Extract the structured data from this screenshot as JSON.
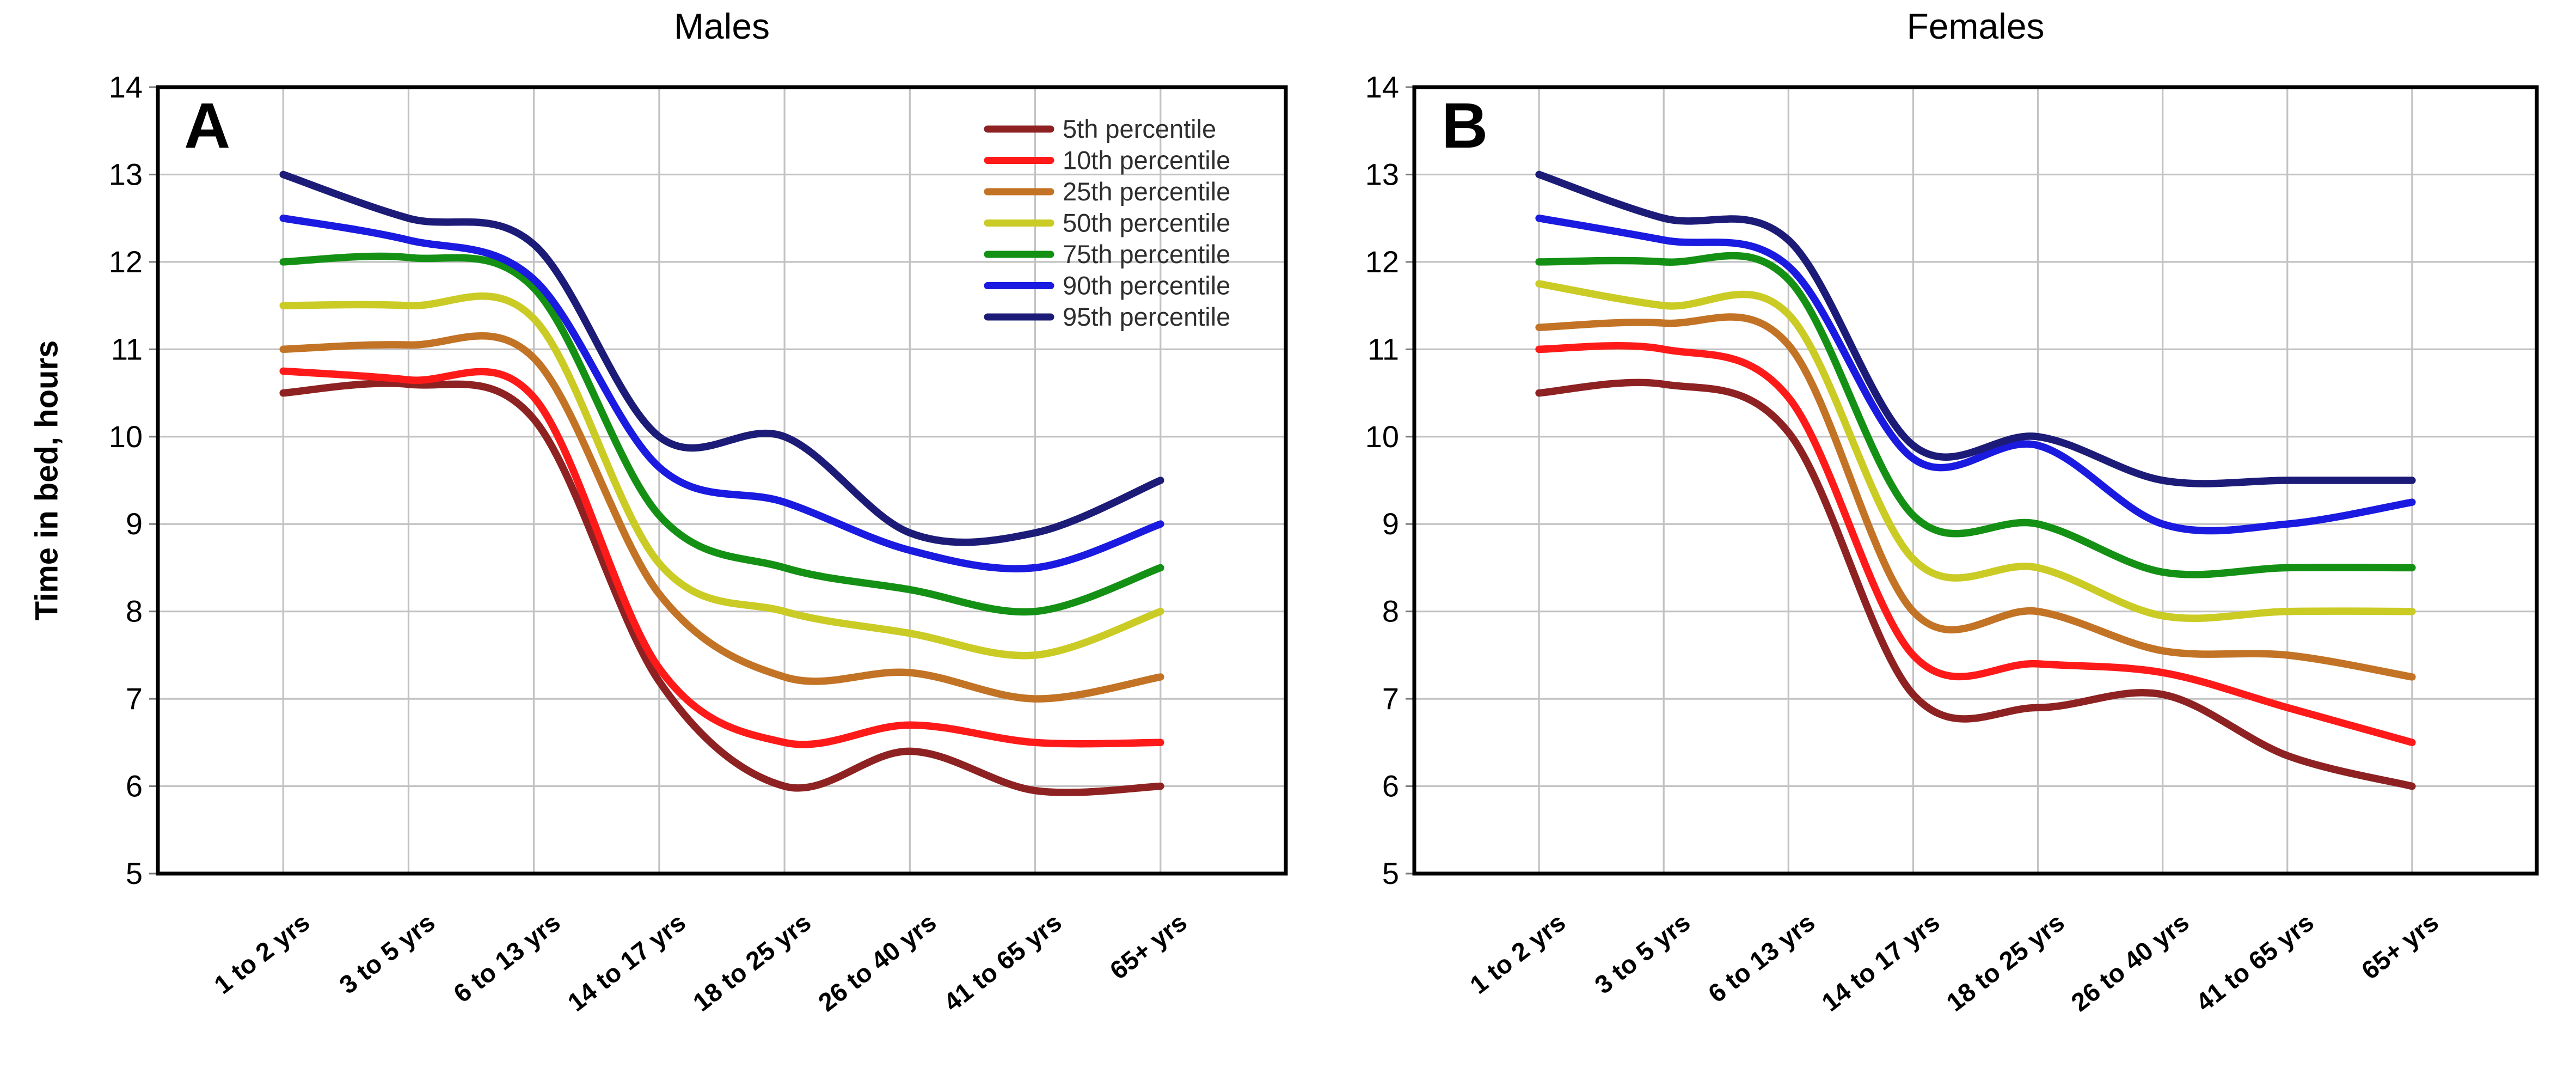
{
  "figure": {
    "panel_a": {
      "letter": "A",
      "title": "Males"
    },
    "panel_b": {
      "letter": "B",
      "title": "Females"
    },
    "y_axis": {
      "label": "Time in bed, hours",
      "min": 5,
      "max": 14,
      "ticks": [
        14,
        13,
        12,
        11,
        10,
        9,
        8,
        7,
        6,
        5
      ]
    },
    "x_categories": [
      "1 to 2 yrs",
      "3 to 5 yrs",
      "6 to 13 yrs",
      "14 to 17 yrs",
      "18 to 25 yrs",
      "26 to 40 yrs",
      "41 to 65 yrs",
      "65+ yrs"
    ],
    "colors": {
      "grid": "#c2c2c2",
      "axis_border": "#000000",
      "tick": "#7a7a7a",
      "background": "#ffffff",
      "legend_text": "#2e2e2e"
    }
  },
  "chart_data": [
    {
      "type": "line",
      "panel": "A",
      "title": "Males",
      "xlabel": "",
      "ylabel": "Time in bed, hours",
      "ylim": [
        5,
        14
      ],
      "grid": true,
      "legend_position": "top-right",
      "categories": [
        "1 to 2 yrs",
        "3 to 5 yrs",
        "6 to 13 yrs",
        "14 to 17 yrs",
        "18 to 25 yrs",
        "26 to 40 yrs",
        "41 to 65 yrs",
        "65+ yrs"
      ],
      "series": [
        {
          "name": "5th percentile",
          "color": "#8E2222",
          "values": [
            10.5,
            10.6,
            10.2,
            7.2,
            6.0,
            6.4,
            5.95,
            6.0
          ]
        },
        {
          "name": "10th percentile",
          "color": "#FF1A1A",
          "values": [
            10.75,
            10.65,
            10.45,
            7.35,
            6.5,
            6.7,
            6.5,
            6.5
          ]
        },
        {
          "name": "25th percentile",
          "color": "#C37325",
          "values": [
            11.0,
            11.05,
            10.9,
            8.2,
            7.25,
            7.3,
            7.0,
            7.25
          ]
        },
        {
          "name": "50th percentile",
          "color": "#CBCB25",
          "values": [
            11.5,
            11.5,
            11.35,
            8.55,
            8.0,
            7.75,
            7.5,
            8.0
          ]
        },
        {
          "name": "75th percentile",
          "color": "#149114",
          "values": [
            12.0,
            12.05,
            11.7,
            9.1,
            8.5,
            8.25,
            8.0,
            8.5
          ]
        },
        {
          "name": "90th percentile",
          "color": "#1A1AE0",
          "values": [
            12.5,
            12.25,
            11.8,
            9.65,
            9.25,
            8.7,
            8.5,
            9.0
          ]
        },
        {
          "name": "95th percentile",
          "color": "#1C1C78",
          "values": [
            13.0,
            12.5,
            12.2,
            10.0,
            10.0,
            8.9,
            8.9,
            9.5
          ]
        }
      ]
    },
    {
      "type": "line",
      "panel": "B",
      "title": "Females",
      "xlabel": "",
      "ylabel": "Time in bed, hours",
      "ylim": [
        5,
        14
      ],
      "grid": true,
      "legend_position": "none",
      "categories": [
        "1 to 2 yrs",
        "3 to 5 yrs",
        "6 to 13 yrs",
        "14 to 17 yrs",
        "18 to 25 yrs",
        "26 to 40 yrs",
        "41 to 65 yrs",
        "65+ yrs"
      ],
      "series": [
        {
          "name": "5th percentile",
          "color": "#8E2222",
          "values": [
            10.5,
            10.6,
            10.05,
            7.05,
            6.9,
            7.05,
            6.35,
            6.0
          ]
        },
        {
          "name": "10th percentile",
          "color": "#FF1A1A",
          "values": [
            11.0,
            11.0,
            10.45,
            7.5,
            7.4,
            7.3,
            6.9,
            6.5
          ]
        },
        {
          "name": "25th percentile",
          "color": "#C37325",
          "values": [
            11.25,
            11.3,
            11.05,
            8.0,
            8.0,
            7.55,
            7.5,
            7.25
          ]
        },
        {
          "name": "50th percentile",
          "color": "#CBCB25",
          "values": [
            11.75,
            11.5,
            11.4,
            8.6,
            8.5,
            7.95,
            8.0,
            8.0
          ]
        },
        {
          "name": "75th percentile",
          "color": "#149114",
          "values": [
            12.0,
            12.0,
            11.8,
            9.1,
            9.0,
            8.45,
            8.5,
            8.5
          ]
        },
        {
          "name": "90th percentile",
          "color": "#1A1AE0",
          "values": [
            12.5,
            12.25,
            11.95,
            9.75,
            9.9,
            9.0,
            9.0,
            9.25
          ]
        },
        {
          "name": "95th percentile",
          "color": "#1C1C78",
          "values": [
            13.0,
            12.5,
            12.25,
            9.9,
            10.0,
            9.5,
            9.5,
            9.5
          ]
        }
      ]
    }
  ]
}
